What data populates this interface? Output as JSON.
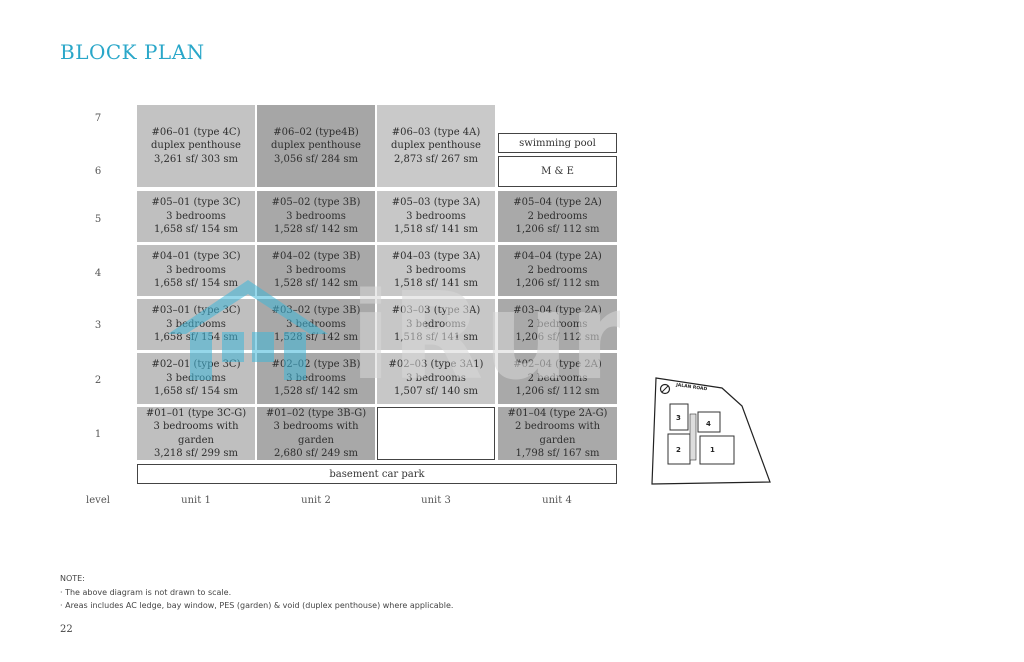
{
  "page_title": "BLOCK PLAN",
  "level_label": "level",
  "level_numbers": [
    "7",
    "6",
    "5",
    "4",
    "3",
    "2",
    "1"
  ],
  "unit_labels": [
    "unit 1",
    "unit 2",
    "unit 3",
    "unit 4"
  ],
  "penthouse": [
    {
      "line1": "#06–01 (type 4C)",
      "line2": "duplex penthouse",
      "line3": "3,261 sf/ 303 sm"
    },
    {
      "line1": "#06–02 (type4B)",
      "line2": "duplex penthouse",
      "line3": "3,056 sf/ 284 sm"
    },
    {
      "line1": "#06–03 (type 4A)",
      "line2": "duplex penthouse",
      "line3": "2,873 sf/ 267 sm"
    }
  ],
  "rooftop": {
    "pool": "swimming pool",
    "me": "M & E"
  },
  "rows": [
    {
      "level": "5",
      "units": [
        {
          "line1": "#05–01 (type 3C)",
          "line2": "3 bedrooms",
          "line3": "1,658 sf/ 154 sm"
        },
        {
          "line1": "#05–02 (type 3B)",
          "line2": "3 bedrooms",
          "line3": "1,528 sf/ 142 sm"
        },
        {
          "line1": "#05–03 (type 3A)",
          "line2": "3 bedrooms",
          "line3": "1,518 sf/ 141 sm"
        },
        {
          "line1": "#05–04 (type 2A)",
          "line2": "2 bedrooms",
          "line3": "1,206 sf/ 112 sm"
        }
      ]
    },
    {
      "level": "4",
      "units": [
        {
          "line1": "#04–01 (type 3C)",
          "line2": "3 bedrooms",
          "line3": "1,658 sf/ 154 sm"
        },
        {
          "line1": "#04–02 (type 3B)",
          "line2": "3 bedrooms",
          "line3": "1,528 sf/ 142 sm"
        },
        {
          "line1": "#04–03 (type 3A)",
          "line2": "3 bedrooms",
          "line3": "1,518 sf/ 141 sm"
        },
        {
          "line1": "#04–04 (type 2A)",
          "line2": "2 bedrooms",
          "line3": "1,206 sf/ 112 sm"
        }
      ]
    },
    {
      "level": "3",
      "units": [
        {
          "line1": "#03–01 (type 3C)",
          "line2": "3 bedrooms",
          "line3": "1,658 sf/ 154 sm"
        },
        {
          "line1": "#03–02 (type 3B)",
          "line2": "3 bedrooms",
          "line3": "1,528 sf/ 142 sm"
        },
        {
          "line1": "#03–03 (type 3A)",
          "line2": "3 bedrooms",
          "line3": "1,518 sf/ 141 sm"
        },
        {
          "line1": "#03–04 (type 2A)",
          "line2": "2 bedrooms",
          "line3": "1,206 sf/ 112 sm"
        }
      ]
    },
    {
      "level": "2",
      "units": [
        {
          "line1": "#02–01 (type 3C)",
          "line2": "3 bedrooms",
          "line3": "1,658 sf/ 154 sm"
        },
        {
          "line1": "#02–02 (type 3B)",
          "line2": "3 bedrooms",
          "line3": "1,528 sf/ 142 sm"
        },
        {
          "line1": "#02–03 (type 3A1)",
          "line2": "3 bedrooms",
          "line3": "1,507 sf/ 140 sm"
        },
        {
          "line1": "#02–04 (type 2A)",
          "line2": "2 bedrooms",
          "line3": "1,206 sf/ 112 sm"
        }
      ]
    },
    {
      "level": "1",
      "units": [
        {
          "line1": "#01–01 (type 3C-G)",
          "line2": "3 bedrooms with garden",
          "line3": "3,218 sf/ 299 sm"
        },
        {
          "line1": "#01–02 (type 3B-G)",
          "line2": "3 bedrooms with garden",
          "line3": "2,680 sf/ 249 sm"
        },
        null,
        {
          "line1": "#01–04 (type 2A-G)",
          "line2": "2 bedrooms with garden",
          "line3": "1,798 sf/ 167 sm"
        }
      ]
    }
  ],
  "basement": "basement car park",
  "notes": {
    "heading": "NOTE:",
    "items": [
      "The above diagram is not drawn to scale.",
      "Areas includes AC ledge, bay window, PES (garden) & void (duplex penthouse) where applicable."
    ]
  },
  "page_number": "22",
  "site_plan": {
    "road": "JALAN ROAD",
    "blocks": [
      "3",
      "4",
      "2",
      "1"
    ]
  },
  "watermark": "iRun",
  "colors": {
    "title": "#2aa7c9",
    "watermark": "#3fb7d9"
  }
}
